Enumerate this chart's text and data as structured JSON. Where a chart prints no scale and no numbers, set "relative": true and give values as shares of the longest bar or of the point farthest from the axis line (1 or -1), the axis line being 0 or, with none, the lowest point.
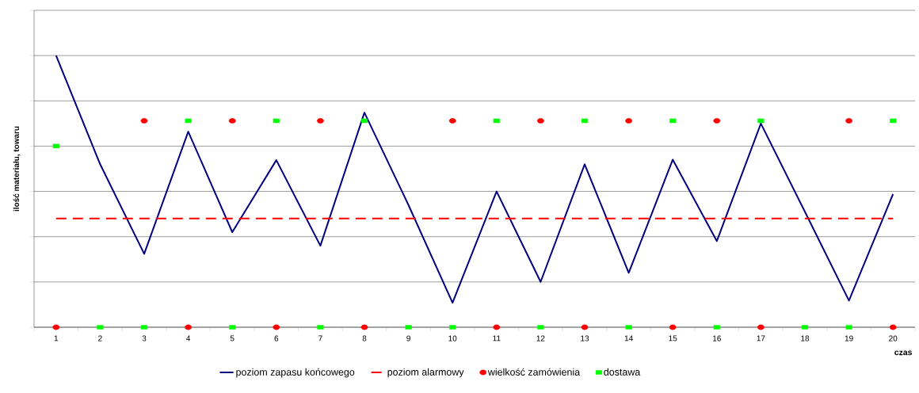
{
  "chart_data": {
    "type": "line",
    "relative": true,
    "xlabel": "czas",
    "ylabel": "ilość materiału, towaru",
    "grid": "y",
    "legend": "bottom",
    "categories": [
      "1",
      "2",
      "3",
      "4",
      "5",
      "6",
      "7",
      "8",
      "9",
      "10",
      "11",
      "12",
      "13",
      "14",
      "15",
      "16",
      "17",
      "18",
      "19",
      "20"
    ],
    "series": [
      {
        "name": "poziom zapasu końcowego",
        "color": "#000080",
        "marker": "none",
        "line_style": "solid",
        "values": [
          1,
          0.6,
          0.27,
          0.72,
          0.35,
          0.615,
          0.3,
          0.79,
          0.45,
          0.09,
          0.5,
          0.167,
          0.6,
          0.2,
          0.617,
          0.317,
          0.75,
          0.425,
          0.098,
          0.49
        ]
      },
      {
        "name": "poziom alarmowy",
        "color": "#ff0000",
        "marker": "none",
        "line_style": "dashed",
        "values": [
          0.4,
          0.4,
          0.4,
          0.4,
          0.4,
          0.4,
          0.4,
          0.4,
          0.4,
          0.4,
          0.4,
          0.4,
          0.4,
          0.4,
          0.4,
          0.4,
          0.4,
          0.4,
          0.4,
          0.4
        ]
      },
      {
        "name": "wielkość zamówienia",
        "type": "scatter",
        "color": "#ff0000",
        "marker": "circle",
        "values": [
          0,
          null,
          0.76,
          0,
          0.76,
          0,
          0.76,
          0,
          null,
          0.76,
          0,
          0.76,
          0,
          0.76,
          0,
          0.76,
          0,
          null,
          0.76,
          0
        ]
      },
      {
        "name": "dostawa",
        "type": "scatter",
        "color": "#00ff00",
        "marker": "square",
        "values": [
          0.667,
          0,
          0,
          0.76,
          0,
          0.76,
          0,
          0.76,
          0,
          0,
          0.76,
          0,
          0.76,
          0,
          0.76,
          0,
          0.76,
          0,
          0,
          0.76
        ]
      }
    ]
  }
}
